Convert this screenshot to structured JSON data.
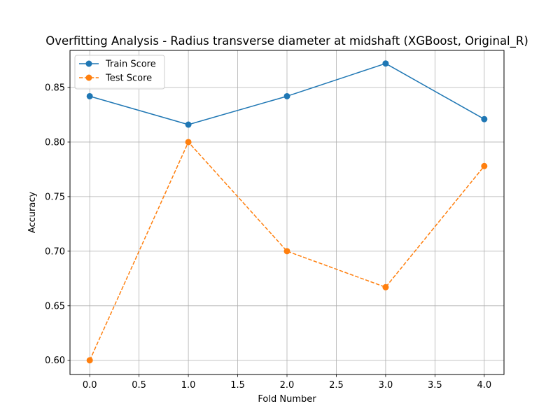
{
  "chart_data": {
    "type": "line",
    "title": "Overfitting Analysis - Radius transverse diameter at midshaft (XGBoost, Original_R)",
    "xlabel": "Fold Number",
    "ylabel": "Accuracy",
    "x": [
      0,
      1,
      2,
      3,
      4
    ],
    "xlim": [
      -0.2,
      4.2
    ],
    "ylim": [
      0.587,
      0.884
    ],
    "xticks": [
      0.0,
      0.5,
      1.0,
      1.5,
      2.0,
      2.5,
      3.0,
      3.5,
      4.0
    ],
    "xtick_labels": [
      "0.0",
      "0.5",
      "1.0",
      "1.5",
      "2.0",
      "2.5",
      "3.0",
      "3.5",
      "4.0"
    ],
    "yticks": [
      0.6,
      0.65,
      0.7,
      0.75,
      0.8,
      0.85
    ],
    "ytick_labels": [
      "0.60",
      "0.65",
      "0.70",
      "0.75",
      "0.80",
      "0.85"
    ],
    "grid": true,
    "legend_position": "top-left",
    "series": [
      {
        "name": "Train Score",
        "values": [
          0.842,
          0.816,
          0.842,
          0.872,
          0.821
        ],
        "color": "#1f77b4",
        "linestyle": "solid",
        "marker": "circle"
      },
      {
        "name": "Test Score",
        "values": [
          0.6,
          0.8,
          0.7,
          0.667,
          0.778
        ],
        "color": "#ff7f0e",
        "linestyle": "dashed",
        "marker": "circle"
      }
    ]
  }
}
